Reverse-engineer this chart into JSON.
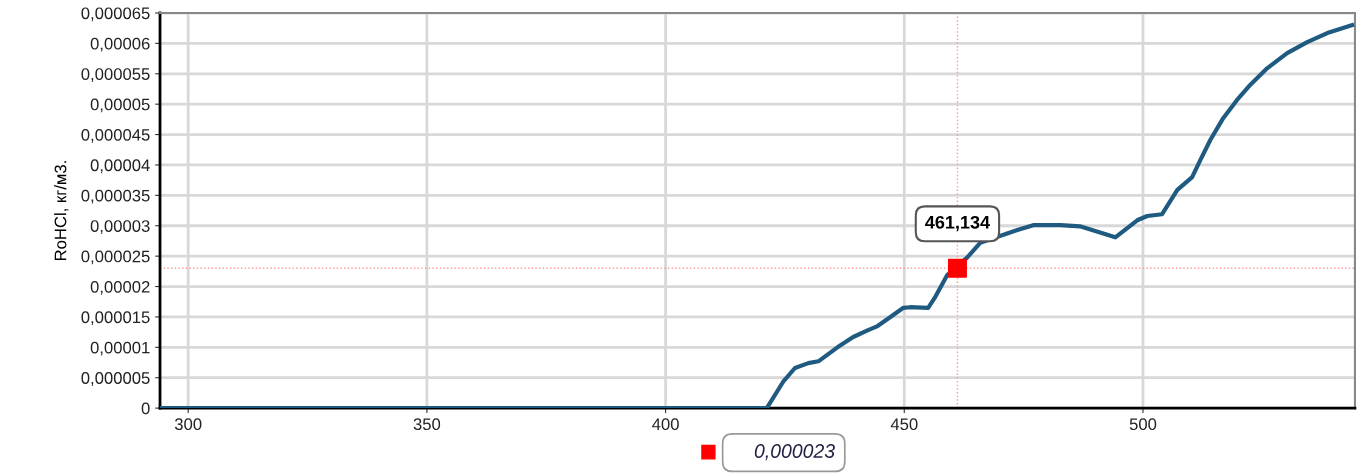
{
  "chart_data": {
    "type": "line",
    "ylabel": "RoHCl, кг/м3.",
    "xlim": [
      294.1,
      544.4
    ],
    "xticks": [
      300,
      350,
      400,
      450,
      500
    ],
    "ylim": [
      0,
      6.5e-05
    ],
    "yticks": [
      {
        "value": 0,
        "label": "0"
      },
      {
        "value": 5e-06,
        "label": "0,000005"
      },
      {
        "value": 1e-05,
        "label": "0,00001"
      },
      {
        "value": 1.5e-05,
        "label": "0,000015"
      },
      {
        "value": 2e-05,
        "label": "0,00002"
      },
      {
        "value": 2.5e-05,
        "label": "0,000025"
      },
      {
        "value": 3e-05,
        "label": "0,00003"
      },
      {
        "value": 3.5e-05,
        "label": "0,000035"
      },
      {
        "value": 4e-05,
        "label": "0,00004"
      },
      {
        "value": 4.5e-05,
        "label": "0,000045"
      },
      {
        "value": 5e-05,
        "label": "0,00005"
      },
      {
        "value": 5.5e-05,
        "label": "0,000055"
      },
      {
        "value": 6e-05,
        "label": "0,00006"
      },
      {
        "value": 6.5e-05,
        "label": "0,000065"
      }
    ],
    "grid": true,
    "series": [
      {
        "color": "#1f5a80",
        "marker": "none",
        "line_style": "solid",
        "x": [
          294.1,
          421.2,
          424.6,
          427.1,
          429.9,
          432.0,
          436.0,
          439.3,
          442.3,
          444.4,
          447.1,
          449.8,
          451.2,
          455.0,
          456.5,
          459.0,
          463.2,
          465.9,
          473.7,
          477.0,
          482.7,
          486.8,
          494.2,
          498.8,
          500.9,
          504.0,
          507.2,
          510.3,
          512.0,
          514.1,
          516.8,
          519.7,
          522.5,
          526.0,
          530.2,
          534.4,
          538.6,
          543.8
        ],
        "values": [
          0,
          0,
          4.3e-06,
          6.6e-06,
          7.4e-06,
          7.7e-06,
          1e-05,
          1.17e-05,
          1.28e-05,
          1.35e-05,
          1.5e-05,
          1.65e-05,
          1.66e-05,
          1.65e-05,
          1.83e-05,
          2.19e-05,
          2.48e-05,
          2.72e-05,
          2.93e-05,
          3.01e-05,
          3.01e-05,
          2.99e-05,
          2.81e-05,
          3.09e-05,
          3.16e-05,
          3.19e-05,
          3.59e-05,
          3.8e-05,
          4.08e-05,
          4.41e-05,
          4.77e-05,
          5.07e-05,
          5.32e-05,
          5.59e-05,
          5.84e-05,
          6.02e-05,
          6.17e-05,
          6.3e-05
        ]
      },
      {
        "type": "scatter",
        "color": "#ff0000",
        "marker": "square",
        "x": [
          461.134
        ],
        "values": [
          2.3e-05
        ]
      }
    ],
    "ref_lines": [
      {
        "axis": "x",
        "value": 461.134,
        "color": "#ff9999",
        "line_style": "dotted"
      },
      {
        "axis": "y",
        "value": 2.3e-05,
        "color": "#ff9999",
        "line_style": "dotted"
      }
    ],
    "annotations": [
      "461,134",
      "0,000023"
    ]
  }
}
